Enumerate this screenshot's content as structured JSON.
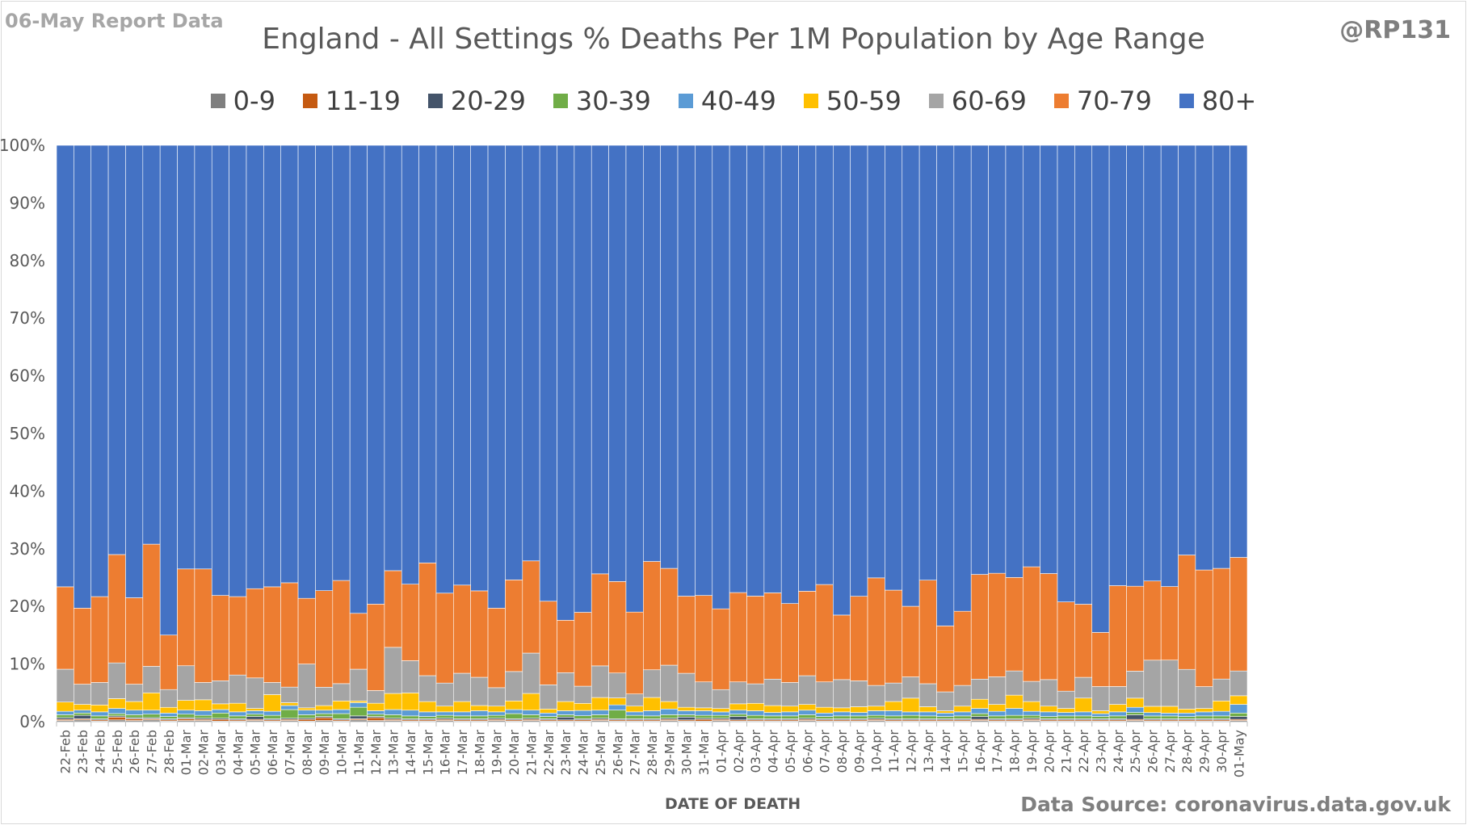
{
  "report_label": "06-May Report Data",
  "handle": "@RP131",
  "source": "Data Source: coronavirus.data.gov.uk",
  "chart_data": {
    "type": "bar",
    "stacking": "percent",
    "title": "England - All Settings % Deaths Per 1M Population by Age Range",
    "xlabel": "DATE OF DEATH",
    "ylabel": "",
    "ylim": [
      0,
      100
    ],
    "y_ticks": [
      "0%",
      "10%",
      "20%",
      "30%",
      "40%",
      "50%",
      "60%",
      "70%",
      "80%",
      "90%",
      "100%"
    ],
    "grid": false,
    "legend_position": "top",
    "categories": [
      "22-Feb",
      "23-Feb",
      "24-Feb",
      "25-Feb",
      "26-Feb",
      "27-Feb",
      "28-Feb",
      "01-Mar",
      "02-Mar",
      "03-Mar",
      "04-Mar",
      "05-Mar",
      "06-Mar",
      "07-Mar",
      "08-Mar",
      "09-Mar",
      "10-Mar",
      "11-Mar",
      "12-Mar",
      "13-Mar",
      "14-Mar",
      "15-Mar",
      "16-Mar",
      "17-Mar",
      "18-Mar",
      "19-Mar",
      "20-Mar",
      "21-Mar",
      "22-Mar",
      "23-Mar",
      "24-Mar",
      "25-Mar",
      "26-Mar",
      "27-Mar",
      "28-Mar",
      "29-Mar",
      "30-Mar",
      "31-Mar",
      "01-Apr",
      "02-Apr",
      "03-Apr",
      "04-Apr",
      "05-Apr",
      "06-Apr",
      "07-Apr",
      "08-Apr",
      "09-Apr",
      "10-Apr",
      "11-Apr",
      "12-Apr",
      "13-Apr",
      "14-Apr",
      "15-Apr",
      "16-Apr",
      "17-Apr",
      "18-Apr",
      "19-Apr",
      "20-Apr",
      "21-Apr",
      "22-Apr",
      "23-Apr",
      "24-Apr",
      "25-Apr",
      "26-Apr",
      "27-Apr",
      "28-Apr",
      "29-Apr",
      "30-Apr",
      "01-May"
    ],
    "series": [
      {
        "name": "0-9",
        "color": "#7f7f7f",
        "values": [
          0.2,
          0.3,
          0.1,
          0.3,
          0.2,
          0.3,
          0.1,
          0.2,
          0.2,
          0.1,
          0.1,
          0.2,
          0.1,
          0.2,
          0.1,
          0.2,
          0.1,
          0.3,
          0.2,
          0.2,
          0.1,
          0.1,
          0.2,
          0.1,
          0.1,
          0.2,
          0.1,
          0.2,
          0.1,
          0.1,
          0.1,
          0.2,
          0.1,
          0.1,
          0.1,
          0.2,
          0.1,
          0.1,
          0.2,
          0.1,
          0.1,
          0.1,
          0.1,
          0.2,
          0.1,
          0.1,
          0.1,
          0.2,
          0.1,
          0.1,
          0.1,
          0.1,
          0.1,
          0.2,
          0.1,
          0.1,
          0.2,
          0.1,
          0.1,
          0.1,
          0.1,
          0.1,
          0.2,
          0.1,
          0.1,
          0.1,
          0.1,
          0.1,
          0.2
        ]
      },
      {
        "name": "11-19",
        "color": "#c55a11",
        "values": [
          0.2,
          0.2,
          0.2,
          0.5,
          0.3,
          0.2,
          0.2,
          0.3,
          0.2,
          0.3,
          0.2,
          0.2,
          0.2,
          0.2,
          0.3,
          0.5,
          0.2,
          0.2,
          0.5,
          0.2,
          0.2,
          0.2,
          0.2,
          0.2,
          0.2,
          0.2,
          0.2,
          0.2,
          0.2,
          0.2,
          0.2,
          0.2,
          0.2,
          0.2,
          0.2,
          0.2,
          0.2,
          0.3,
          0.2,
          0.2,
          0.2,
          0.2,
          0.2,
          0.2,
          0.2,
          0.2,
          0.2,
          0.2,
          0.2,
          0.2,
          0.2,
          0.2,
          0.2,
          0.2,
          0.2,
          0.2,
          0.2,
          0.2,
          0.2,
          0.2,
          0.2,
          0.2,
          0.2,
          0.2,
          0.2,
          0.2,
          0.2,
          0.2,
          0.2
        ]
      },
      {
        "name": "20-29",
        "color": "#44546a",
        "values": [
          0.3,
          0.6,
          0.2,
          0.2,
          0.2,
          0.2,
          0.2,
          0.2,
          0.2,
          0.2,
          0.2,
          0.5,
          0.2,
          0.2,
          0.2,
          0.2,
          0.2,
          0.5,
          0.2,
          0.2,
          0.2,
          0.2,
          0.2,
          0.2,
          0.2,
          0.2,
          0.2,
          0.2,
          0.2,
          0.5,
          0.2,
          0.2,
          0.2,
          0.2,
          0.2,
          0.2,
          0.5,
          0.2,
          0.2,
          0.6,
          0.2,
          0.2,
          0.2,
          0.2,
          0.2,
          0.2,
          0.2,
          0.2,
          0.2,
          0.2,
          0.2,
          0.2,
          0.2,
          0.5,
          0.2,
          0.2,
          0.2,
          0.2,
          0.2,
          0.2,
          0.2,
          0.2,
          0.8,
          0.2,
          0.2,
          0.2,
          0.2,
          0.2,
          0.5
        ]
      },
      {
        "name": "30-39",
        "color": "#70ad47",
        "values": [
          0.5,
          0.4,
          0.5,
          0.4,
          0.5,
          0.6,
          0.4,
          0.6,
          0.5,
          0.9,
          0.5,
          0.4,
          0.6,
          1.5,
          0.6,
          0.5,
          0.9,
          1.5,
          0.4,
          0.6,
          0.5,
          0.4,
          0.5,
          0.5,
          0.5,
          0.5,
          0.9,
          0.6,
          0.4,
          0.4,
          0.5,
          0.6,
          1.5,
          0.6,
          0.5,
          0.6,
          0.4,
          0.5,
          0.5,
          0.4,
          0.6,
          0.5,
          0.5,
          0.6,
          0.4,
          0.5,
          0.5,
          0.5,
          0.5,
          0.6,
          0.5,
          0.4,
          0.5,
          0.5,
          0.5,
          0.6,
          0.5,
          0.4,
          0.5,
          0.5,
          0.4,
          0.5,
          0.4,
          0.5,
          0.5,
          0.4,
          0.5,
          0.5,
          0.6
        ]
      },
      {
        "name": "40-49",
        "color": "#5b9bd5",
        "values": [
          0.6,
          0.5,
          0.7,
          0.9,
          0.8,
          0.7,
          0.6,
          0.7,
          0.8,
          0.6,
          0.7,
          0.6,
          0.7,
          0.7,
          0.8,
          0.6,
          0.7,
          0.8,
          0.6,
          0.9,
          1.0,
          0.8,
          0.6,
          0.7,
          0.9,
          0.6,
          0.7,
          0.8,
          0.6,
          0.7,
          0.9,
          0.8,
          0.9,
          0.6,
          0.9,
          1.0,
          0.7,
          0.8,
          0.6,
          0.7,
          0.8,
          0.6,
          0.7,
          0.8,
          0.6,
          0.7,
          0.6,
          0.8,
          0.9,
          0.6,
          0.7,
          0.6,
          0.7,
          0.9,
          0.8,
          1.2,
          0.7,
          0.8,
          0.6,
          0.7,
          0.5,
          0.7,
          0.9,
          0.6,
          0.5,
          0.6,
          0.7,
          0.8,
          1.5
        ]
      },
      {
        "name": "50-59",
        "color": "#ffc000",
        "values": [
          1.6,
          1.0,
          1.2,
          1.7,
          1.5,
          3.0,
          1.0,
          1.7,
          1.9,
          1.0,
          1.5,
          0.4,
          2.9,
          0.5,
          0.4,
          0.8,
          1.5,
          0.3,
          1.3,
          2.8,
          3.0,
          1.8,
          1.0,
          1.8,
          0.9,
          1.0,
          1.5,
          2.9,
          0.7,
          1.6,
          1.2,
          2.2,
          1.2,
          1.0,
          2.3,
          1.3,
          0.6,
          0.5,
          0.6,
          1.1,
          1.3,
          1.2,
          1.0,
          1.0,
          1.0,
          0.7,
          1.0,
          0.8,
          1.6,
          2.4,
          0.9,
          0.4,
          1.0,
          1.6,
          1.2,
          2.3,
          1.7,
          1.0,
          0.7,
          2.4,
          0.5,
          1.3,
          1.6,
          1.1,
          1.2,
          0.7,
          0.6,
          1.8,
          1.5
        ]
      },
      {
        "name": "60-69",
        "color": "#a5a5a5",
        "values": [
          5.7,
          3.5,
          3.9,
          6.2,
          3.0,
          4.6,
          3.1,
          6.0,
          3.0,
          4.0,
          4.9,
          5.3,
          2.1,
          2.7,
          7.6,
          3.2,
          3.0,
          5.5,
          2.2,
          8.0,
          5.6,
          4.5,
          4.0,
          4.9,
          4.9,
          3.2,
          5.1,
          7.0,
          4.2,
          5.0,
          2.9,
          5.5,
          4.3,
          2.1,
          4.8,
          6.3,
          5.9,
          4.5,
          3.3,
          3.8,
          3.4,
          4.6,
          4.1,
          5.0,
          4.4,
          4.9,
          4.5,
          3.6,
          3.2,
          3.7,
          4.0,
          3.3,
          3.6,
          3.5,
          4.8,
          4.2,
          3.5,
          4.6,
          3.0,
          3.6,
          4.2,
          3.1,
          4.7,
          8.1,
          8.1,
          6.9,
          3.8,
          3.8,
          4.3
        ]
      },
      {
        "name": "70-79",
        "color": "#ed7d31",
        "values": [
          14.3,
          13.2,
          14.9,
          18.8,
          15.0,
          21.2,
          9.5,
          16.8,
          19.7,
          14.8,
          13.6,
          15.5,
          16.6,
          18.1,
          11.4,
          16.8,
          17.9,
          9.7,
          15.0,
          13.3,
          13.3,
          19.6,
          15.6,
          15.3,
          15.0,
          13.8,
          15.9,
          16.0,
          14.5,
          9.1,
          12.5,
          16.0,
          15.8,
          14.2,
          18.8,
          16.8,
          13.4,
          15.0,
          14.1,
          15.5,
          15.3,
          15.0,
          13.7,
          14.7,
          16.9,
          11.2,
          14.7,
          18.7,
          16.1,
          12.3,
          18.0,
          11.5,
          12.9,
          18.2,
          18.0,
          16.2,
          19.9,
          18.4,
          15.5,
          12.7,
          9.4,
          17.5,
          14.8,
          13.9,
          12.9,
          19.9,
          20.3,
          19.2,
          19.7
        ]
      },
      {
        "name": "80+",
        "color": "#4472c4",
        "values": [
          76.6,
          80.3,
          78.3,
          71.0,
          78.5,
          69.2,
          85.4,
          73.5,
          73.5,
          78.1,
          78.3,
          77.0,
          76.6,
          75.9,
          78.6,
          77.5,
          75.5,
          81.2,
          79.6,
          73.8,
          76.3,
          72.6,
          77.7,
          76.3,
          77.3,
          80.3,
          75.4,
          72.1,
          79.1,
          82.4,
          79.0,
          74.5,
          75.3,
          80.9,
          72.2,
          73.4,
          78.3,
          78.1,
          80.9,
          77.6,
          78.6,
          77.8,
          79.5,
          77.6,
          76.2,
          81.5,
          78.4,
          75.2,
          77.1,
          80.3,
          75.6,
          83.8,
          81.0,
          74.6,
          74.4,
          74.9,
          73.2,
          74.3,
          79.3,
          79.7,
          84.6,
          76.4,
          76.8,
          76.5,
          77.4,
          71.3,
          73.9,
          73.4,
          71.5
        ]
      }
    ]
  }
}
